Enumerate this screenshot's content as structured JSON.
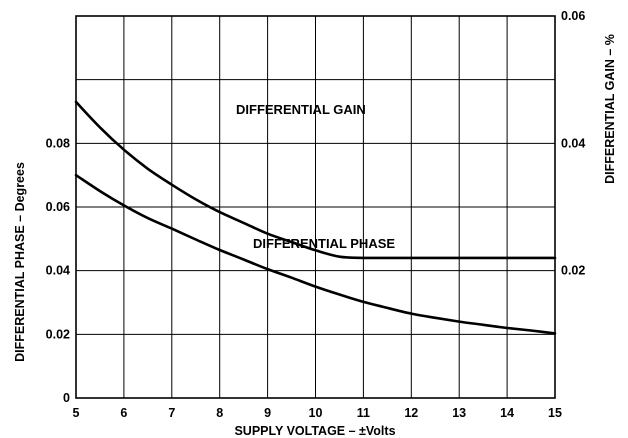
{
  "chart_data": {
    "type": "line",
    "title": "",
    "xlabel": "SUPPLY VOLTAGE – ±Volts",
    "ylabel": "DIFFERENTIAL PHASE – Degrees",
    "y2label": "DIFFERENTIAL GAIN – %",
    "xlim": [
      5,
      15
    ],
    "ylim": [
      0,
      0.12
    ],
    "y2lim": [
      0,
      0.06
    ],
    "grid": true,
    "xticks": [
      "5",
      "6",
      "7",
      "8",
      "9",
      "10",
      "11",
      "12",
      "13",
      "14",
      "15"
    ],
    "yticks": [
      {
        "value": 0,
        "label": "0"
      },
      {
        "value": 0.02,
        "label": "0.02"
      },
      {
        "value": 0.04,
        "label": "0.04"
      },
      {
        "value": 0.06,
        "label": "0.06"
      },
      {
        "value": 0.08,
        "label": "0.08"
      }
    ],
    "y2ticks": [
      {
        "value": 0.02,
        "label": "0.02"
      },
      {
        "value": 0.04,
        "label": "0.04"
      },
      {
        "value": 0.06,
        "label": "0.06"
      }
    ],
    "series": [
      {
        "name": "DIFFERENTIAL GAIN",
        "axis": "right",
        "x": [
          5,
          5.5,
          6,
          6.5,
          7,
          7.5,
          8,
          8.5,
          9,
          9.5,
          10,
          10.5,
          11,
          12,
          13,
          14,
          15
        ],
        "y": [
          0.0465,
          0.0425,
          0.039,
          0.036,
          0.0335,
          0.0312,
          0.0292,
          0.0275,
          0.0258,
          0.0245,
          0.0232,
          0.0222,
          0.022,
          0.022,
          0.022,
          0.022,
          0.022
        ]
      },
      {
        "name": "DIFFERENTIAL PHASE",
        "axis": "left",
        "x": [
          5,
          5.5,
          6,
          6.5,
          7,
          7.5,
          8,
          8.5,
          9,
          9.5,
          10,
          10.5,
          11,
          11.5,
          12,
          12.5,
          13,
          13.5,
          14,
          14.5,
          15
        ],
        "y": [
          0.07,
          0.065,
          0.0605,
          0.0565,
          0.0532,
          0.0498,
          0.0465,
          0.0435,
          0.0405,
          0.0378,
          0.035,
          0.0325,
          0.0302,
          0.0283,
          0.0265,
          0.0252,
          0.024,
          0.023,
          0.022,
          0.0212,
          0.0203
        ]
      }
    ]
  }
}
